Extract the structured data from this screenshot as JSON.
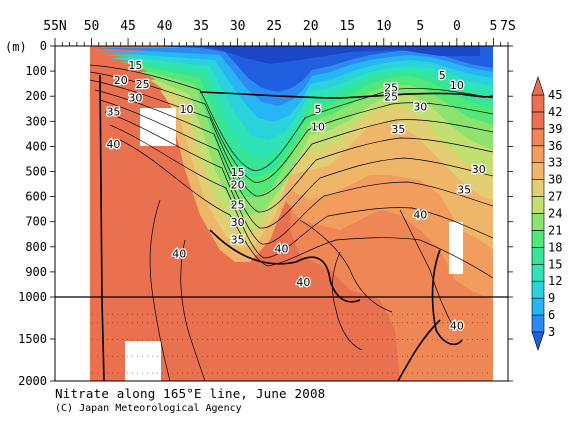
{
  "caption": {
    "title": "Nitrate along 165°E line, June 2008",
    "credit": "(C) Japan Meteorological Agency"
  },
  "chart_data": {
    "type": "heatmap",
    "title": "Nitrate along 165°E line, June 2008",
    "x_axis": {
      "label": "",
      "range_lat": [
        55,
        -7
      ],
      "tick_labels": [
        "55N",
        "50",
        "45",
        "40",
        "35",
        "30",
        "25",
        "20",
        "15",
        "10",
        "5",
        "0",
        "5",
        "7S"
      ],
      "tick_values": [
        55,
        50,
        45,
        40,
        35,
        30,
        25,
        20,
        15,
        10,
        5,
        0,
        -5,
        -7
      ]
    },
    "y_axis": {
      "unit_label": "(m)",
      "upper_range": [
        0,
        1000
      ],
      "lower_range": [
        1000,
        2000
      ],
      "tick_labels": [
        "0",
        "100",
        "200",
        "300",
        "400",
        "500",
        "600",
        "700",
        "800",
        "900",
        "1000",
        "1500",
        "2000"
      ],
      "tick_values": [
        0,
        100,
        200,
        300,
        400,
        500,
        600,
        700,
        800,
        900,
        1000,
        1500,
        2000
      ]
    },
    "colorbar": {
      "levels": [
        "3",
        "6",
        "9",
        "12",
        "15",
        "18",
        "21",
        "24",
        "27",
        "30",
        "33",
        "36",
        "39",
        "42",
        "45"
      ],
      "colors": [
        "#1f5fe0",
        "#2a8cf2",
        "#26b5f5",
        "#2ad3dc",
        "#2fe2b8",
        "#36e696",
        "#52e878",
        "#8ce36e",
        "#c2df72",
        "#e2cf74",
        "#efb66a",
        "#f29d5e",
        "#ef8656",
        "#ea7150",
        "#ea7150"
      ]
    },
    "contour_labels": [
      {
        "text": "15",
        "lat": 44,
        "depth": 80
      },
      {
        "text": "20",
        "lat": 46,
        "depth": 140
      },
      {
        "text": "25",
        "lat": 43,
        "depth": 155
      },
      {
        "text": "30",
        "lat": 44,
        "depth": 210
      },
      {
        "text": "35",
        "lat": 47,
        "depth": 265
      },
      {
        "text": "40",
        "lat": 47,
        "depth": 395
      },
      {
        "text": "10",
        "lat": 37,
        "depth": 255
      },
      {
        "text": "5",
        "lat": 19,
        "depth": 255
      },
      {
        "text": "10",
        "lat": 19,
        "depth": 325
      },
      {
        "text": "15",
        "lat": 30,
        "depth": 505
      },
      {
        "text": "20",
        "lat": 30,
        "depth": 555
      },
      {
        "text": "25",
        "lat": 30,
        "depth": 635
      },
      {
        "text": "30",
        "lat": 30,
        "depth": 705
      },
      {
        "text": "35",
        "lat": 30,
        "depth": 775
      },
      {
        "text": "40",
        "lat": 38,
        "depth": 830
      },
      {
        "text": "40",
        "lat": 24,
        "depth": 810
      },
      {
        "text": "40",
        "lat": 21,
        "depth": 945
      },
      {
        "text": "5",
        "lat": 2,
        "depth": 120
      },
      {
        "text": "10",
        "lat": 0,
        "depth": 160
      },
      {
        "text": "25",
        "lat": 9,
        "depth": 170
      },
      {
        "text": "25",
        "lat": 9,
        "depth": 205
      },
      {
        "text": "30",
        "lat": 5,
        "depth": 245
      },
      {
        "text": "35",
        "lat": 8,
        "depth": 335
      },
      {
        "text": "40",
        "lat": 5,
        "depth": 675
      },
      {
        "text": "30",
        "lat": -3,
        "depth": 495
      },
      {
        "text": "35",
        "lat": -1,
        "depth": 575
      },
      {
        "text": "40",
        "lat": 0,
        "depth": 1350
      }
    ]
  }
}
